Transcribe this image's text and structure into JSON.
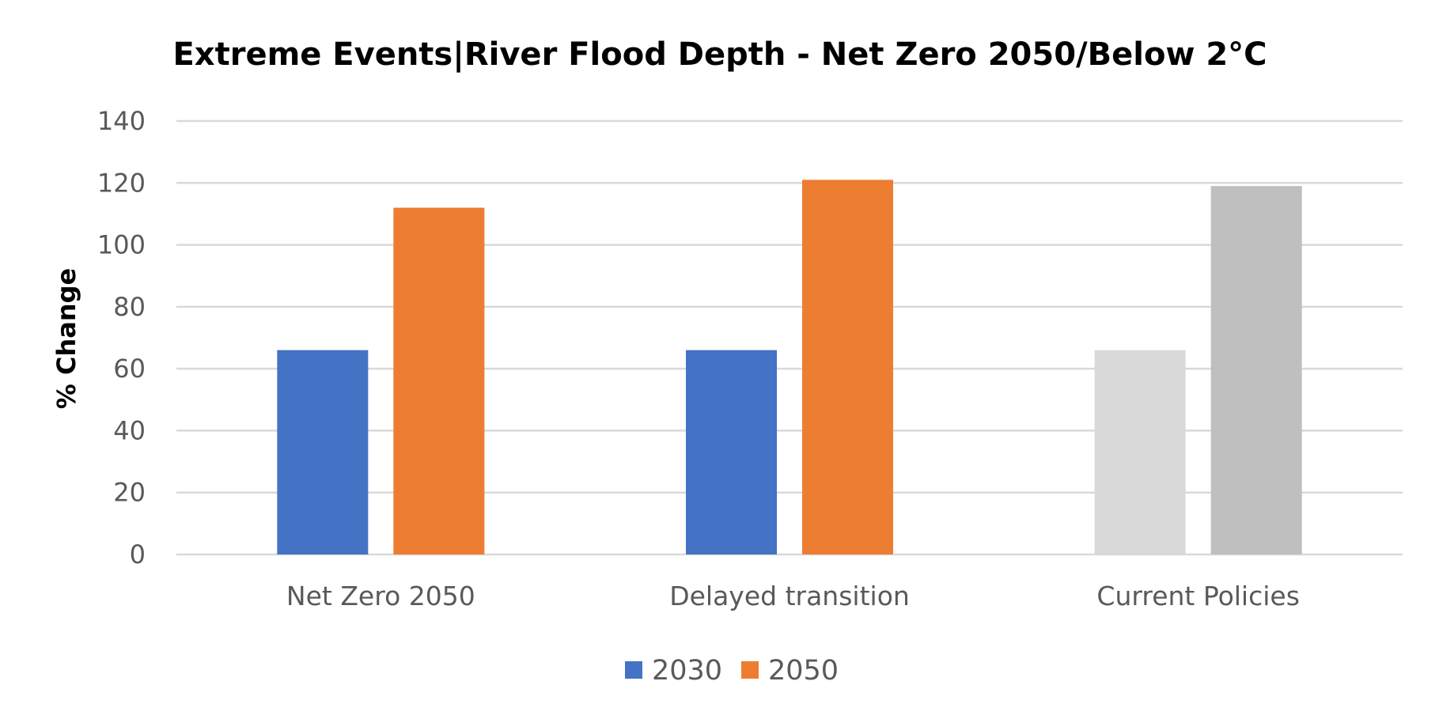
{
  "chart_data": {
    "type": "bar",
    "title": "Extreme Events|River Flood Depth - Net Zero 2050/Below 2°C",
    "xlabel": "",
    "ylabel": "% Change",
    "ylim": [
      0,
      140
    ],
    "yticks": [
      0,
      20,
      40,
      60,
      80,
      100,
      120,
      140
    ],
    "grid": true,
    "legend_position": "bottom",
    "categories": [
      "Net Zero 2050",
      "Delayed transition",
      "Current Policies"
    ],
    "series": [
      {
        "name": "2030",
        "values": [
          66,
          66,
          66
        ],
        "color": "#4472C4"
      },
      {
        "name": "2050",
        "values": [
          112,
          121,
          119
        ],
        "color": "#ED7D31"
      }
    ],
    "bar_colors": [
      [
        "#4472C4",
        "#ED7D31"
      ],
      [
        "#4472C4",
        "#ED7D31"
      ],
      [
        "#D9D9D9",
        "#BFBFBF"
      ]
    ]
  }
}
